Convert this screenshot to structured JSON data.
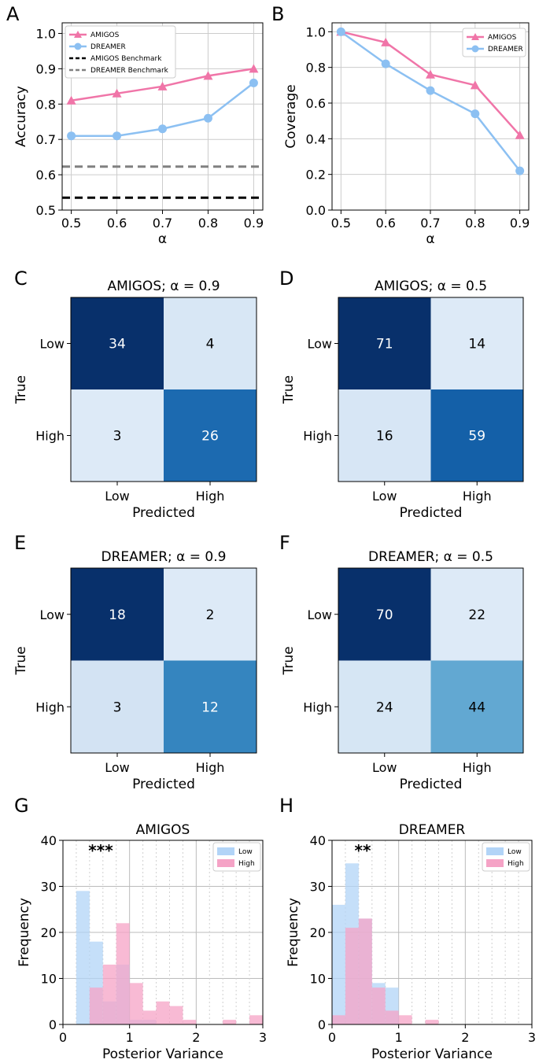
{
  "colors": {
    "amigos": "#f075a8",
    "dreamer": "#8cc0f2",
    "hist_low": "#b2d4f7",
    "hist_high": "#f5a3c6",
    "amigos_bench": "#000000",
    "dreamer_bench": "#808080"
  },
  "panel_letters": [
    "A",
    "B",
    "C",
    "D",
    "E",
    "F",
    "G",
    "H"
  ],
  "chart_data": [
    {
      "type": "line",
      "x": [
        0.5,
        0.6,
        0.7,
        0.8,
        0.9
      ],
      "series": [
        {
          "name": "AMIGOS",
          "values": [
            0.81,
            0.83,
            0.85,
            0.88,
            0.9
          ],
          "marker": "triangle"
        },
        {
          "name": "DREAMER",
          "values": [
            0.71,
            0.71,
            0.73,
            0.76,
            0.86
          ],
          "marker": "circle"
        }
      ],
      "hlines": [
        {
          "name": "AMIGOS Benchmark",
          "value": 0.535
        },
        {
          "name": "DREAMER Benchmark",
          "value": 0.623
        }
      ],
      "xlabel": "α",
      "ylabel": "Accuracy",
      "xticks": [
        "0.5",
        "0.6",
        "0.7",
        "0.8",
        "0.9"
      ],
      "yticks": [
        "0.5",
        "0.6",
        "0.7",
        "0.8",
        "0.9",
        "1.0"
      ],
      "ylim": [
        0.5,
        1.03
      ],
      "xlim": [
        0.48,
        0.92
      ],
      "grid": true,
      "legend": "top-left"
    },
    {
      "type": "line",
      "x": [
        0.5,
        0.6,
        0.7,
        0.8,
        0.9
      ],
      "series": [
        {
          "name": "AMIGOS",
          "values": [
            1.0,
            0.94,
            0.76,
            0.7,
            0.42
          ],
          "marker": "triangle"
        },
        {
          "name": "DREAMER",
          "values": [
            1.0,
            0.82,
            0.67,
            0.54,
            0.22
          ],
          "marker": "circle"
        }
      ],
      "xlabel": "α",
      "ylabel": "Coverage",
      "xticks": [
        "0.5",
        "0.6",
        "0.7",
        "0.8",
        "0.9"
      ],
      "yticks": [
        "0.0",
        "0.2",
        "0.4",
        "0.6",
        "0.8",
        "1.0"
      ],
      "ylim": [
        0,
        1.05
      ],
      "xlim": [
        0.48,
        0.92
      ],
      "grid": true,
      "legend": "top-right"
    },
    {
      "type": "heatmap",
      "title": "AMIGOS; α = 0.9",
      "rows": [
        "Low",
        "High"
      ],
      "cols": [
        "Low",
        "High"
      ],
      "values": [
        [
          34,
          4
        ],
        [
          3,
          26
        ]
      ],
      "xlabel": "Predicted",
      "ylabel": "True"
    },
    {
      "type": "heatmap",
      "title": "AMIGOS; α = 0.5",
      "rows": [
        "Low",
        "High"
      ],
      "cols": [
        "Low",
        "High"
      ],
      "values": [
        [
          71,
          14
        ],
        [
          16,
          59
        ]
      ],
      "xlabel": "Predicted",
      "ylabel": "True"
    },
    {
      "type": "heatmap",
      "title": "DREAMER; α = 0.9",
      "rows": [
        "Low",
        "High"
      ],
      "cols": [
        "Low",
        "High"
      ],
      "values": [
        [
          18,
          2
        ],
        [
          3,
          12
        ]
      ],
      "xlabel": "Predicted",
      "ylabel": "True"
    },
    {
      "type": "heatmap",
      "title": "DREAMER; α = 0.5",
      "rows": [
        "Low",
        "High"
      ],
      "cols": [
        "Low",
        "High"
      ],
      "values": [
        [
          70,
          22
        ],
        [
          24,
          44
        ]
      ],
      "xlabel": "Predicted",
      "ylabel": "True"
    },
    {
      "type": "bar",
      "title": "AMIGOS",
      "bin_width": 0.2,
      "series": [
        {
          "name": "Low",
          "bin_starts": [
            0.2,
            0.4,
            0.6,
            0.8,
            1.0,
            1.2,
            1.4
          ],
          "values": [
            29,
            18,
            5,
            13,
            1,
            1,
            0
          ]
        },
        {
          "name": "High",
          "bin_starts": [
            0.4,
            0.6,
            0.8,
            1.0,
            1.2,
            1.4,
            1.6,
            1.8,
            2.4,
            2.8
          ],
          "values": [
            8,
            13,
            22,
            9,
            3,
            5,
            4,
            1,
            1,
            2
          ]
        }
      ],
      "annotation": "***",
      "xlabel": "Posterior Variance",
      "ylabel": "Frequency",
      "xticks": [
        "0",
        "1",
        "2",
        "3"
      ],
      "yticks": [
        "0",
        "10",
        "20",
        "30",
        "40"
      ],
      "xlim": [
        0,
        3
      ],
      "ylim": [
        0,
        40
      ],
      "legend": "top-right"
    },
    {
      "type": "bar",
      "title": "DREAMER",
      "bin_width": 0.2,
      "series": [
        {
          "name": "Low",
          "bin_starts": [
            0.0,
            0.2,
            0.4,
            0.6,
            0.8
          ],
          "values": [
            26,
            35,
            23,
            9,
            8
          ]
        },
        {
          "name": "High",
          "bin_starts": [
            0.0,
            0.2,
            0.4,
            0.6,
            0.8,
            1.0,
            1.4
          ],
          "values": [
            2,
            21,
            23,
            8,
            3,
            2,
            1
          ]
        }
      ],
      "annotation": "**",
      "xlabel": "Posterior Variance",
      "ylabel": "Frequency",
      "xticks": [
        "0",
        "1",
        "2",
        "3"
      ],
      "yticks": [
        "0",
        "10",
        "20",
        "30",
        "40"
      ],
      "xlim": [
        0,
        3
      ],
      "ylim": [
        0,
        40
      ],
      "legend": "top-right"
    }
  ]
}
